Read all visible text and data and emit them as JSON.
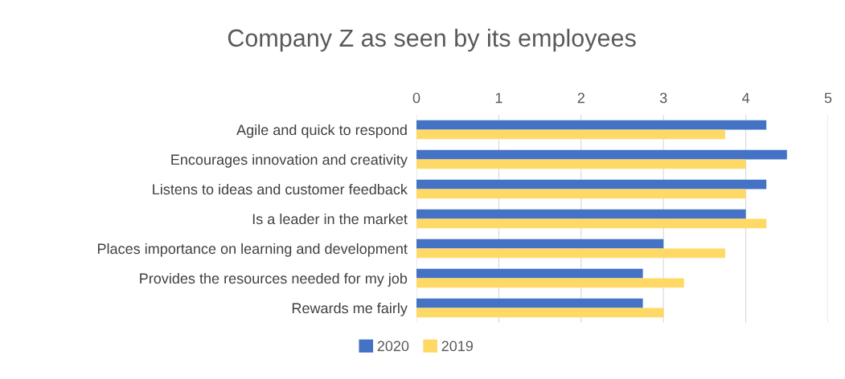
{
  "chart_data": {
    "type": "bar",
    "orientation": "horizontal",
    "title": "Company Z as seen by its employees",
    "categories": [
      "Agile and quick to respond",
      "Encourages innovation and creativity",
      "Listens to ideas and customer feedback",
      "Is a leader in the market",
      "Places importance on learning and development",
      "Provides the resources needed for my job",
      "Rewards me fairly"
    ],
    "series": [
      {
        "name": "2020",
        "color": "#4472c4",
        "values": [
          4.25,
          4.5,
          4.25,
          4.0,
          3.0,
          2.75,
          2.75
        ]
      },
      {
        "name": "2019",
        "color": "#ffd966",
        "values": [
          3.75,
          4.0,
          4.0,
          4.25,
          3.75,
          3.25,
          3.0
        ]
      }
    ],
    "xlim": [
      0,
      5
    ],
    "xticks": [
      0,
      1,
      2,
      3,
      4,
      5
    ],
    "grid": "x",
    "legend": "bottom"
  }
}
